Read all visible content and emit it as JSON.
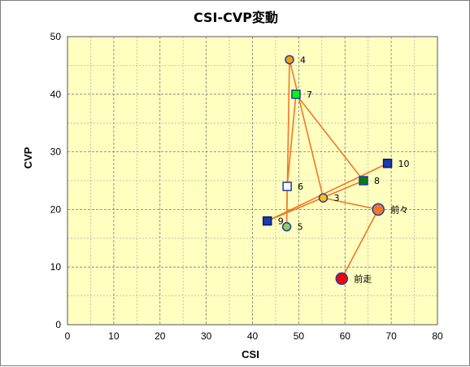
{
  "chart_data": {
    "type": "scatter",
    "title": "CSI-CVP変動",
    "xlabel": "CSI",
    "ylabel": "CVP",
    "xlim": [
      0,
      80
    ],
    "ylim": [
      0,
      50
    ],
    "xticks": [
      0,
      10,
      20,
      30,
      40,
      50,
      60,
      70,
      80
    ],
    "yticks": [
      0,
      10,
      20,
      30,
      40,
      50
    ],
    "grid": true,
    "plot_background": "#ffffc0",
    "line_color": "#f07828",
    "points": [
      {
        "label": "前走",
        "x": 59.3,
        "y": 8.0,
        "marker": "circle-large",
        "fill": "#ff0000",
        "stroke": "#1f3bb3"
      },
      {
        "label": "前々",
        "x": 67.2,
        "y": 20.0,
        "marker": "circle-large",
        "fill": "#f07828",
        "stroke": "#1f3bb3"
      },
      {
        "label": "3",
        "x": 55.3,
        "y": 22.0,
        "marker": "circle",
        "fill": "#ffc000",
        "stroke": "#1f3bb3"
      },
      {
        "label": "4",
        "x": 48.0,
        "y": 46.0,
        "marker": "circle",
        "fill": "#f5a000",
        "stroke": "#1f3bb3"
      },
      {
        "label": "5",
        "x": 47.4,
        "y": 17.0,
        "marker": "circle",
        "fill": "#92d050",
        "stroke": "#1f3bb3"
      },
      {
        "label": "6",
        "x": 47.5,
        "y": 24.0,
        "marker": "square",
        "fill": "#ffffff",
        "stroke": "#1f3bb3"
      },
      {
        "label": "7",
        "x": 49.4,
        "y": 40.0,
        "marker": "square",
        "fill": "#00ff00",
        "stroke": "#1f3bb3"
      },
      {
        "label": "8",
        "x": 64.0,
        "y": 25.0,
        "marker": "square",
        "fill": "#008000",
        "stroke": "#1f3bb3"
      },
      {
        "label": "9",
        "x": 43.2,
        "y": 18.0,
        "marker": "square",
        "fill": "#1f3bb3",
        "stroke": "#0a1a66"
      },
      {
        "label": "10",
        "x": 69.2,
        "y": 28.0,
        "marker": "square",
        "fill": "#1f3bb3",
        "stroke": "#0a1a66"
      }
    ],
    "connection_order": [
      "前走",
      "前々",
      "3",
      "4",
      "5",
      "6",
      "7",
      "8",
      "9",
      "10"
    ]
  }
}
